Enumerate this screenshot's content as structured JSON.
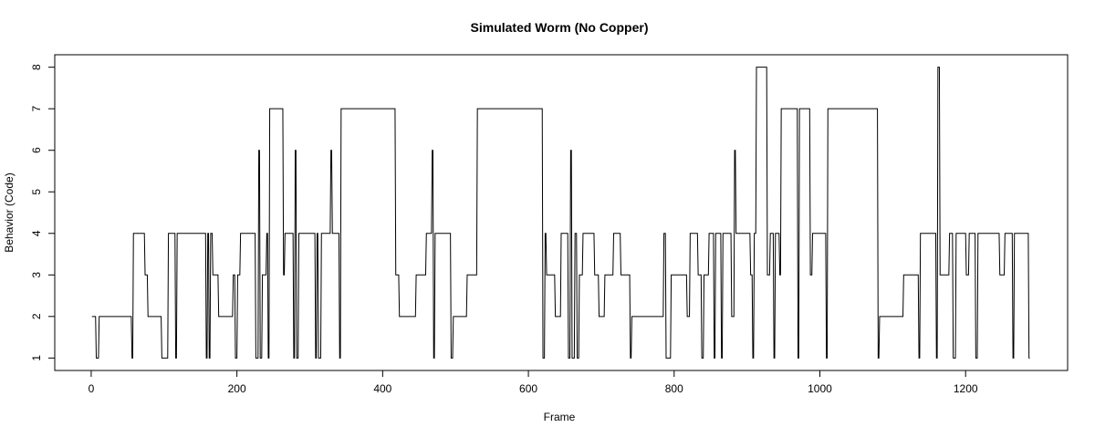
{
  "chart_data": {
    "type": "line",
    "title": "Simulated Worm (No Copper)",
    "xlabel": "Frame",
    "ylabel": "Behavior (Code)",
    "xlim": [
      -50,
      1340
    ],
    "ylim": [
      0.7,
      8.3
    ],
    "x_ticks": [
      0,
      200,
      400,
      600,
      800,
      1000,
      1200
    ],
    "y_ticks": [
      1,
      2,
      3,
      4,
      5,
      6,
      7,
      8
    ],
    "x_tick_labels": [
      "0",
      "200",
      "400",
      "600",
      "800",
      "1000",
      "1200"
    ],
    "y_tick_labels": [
      "1",
      "2",
      "3",
      "4",
      "5",
      "6",
      "7",
      "8"
    ],
    "grid": false,
    "line_color": "#000000",
    "series": [
      {
        "steps": [
          [
            1,
            2
          ],
          [
            7,
            1
          ],
          [
            11,
            2
          ],
          [
            56,
            1
          ],
          [
            58,
            4
          ],
          [
            74,
            3
          ],
          [
            78,
            2
          ],
          [
            97,
            1
          ],
          [
            106,
            4
          ],
          [
            116,
            1
          ],
          [
            118,
            4
          ],
          [
            158,
            1
          ],
          [
            160,
            4
          ],
          [
            162,
            1
          ],
          [
            164,
            4
          ],
          [
            167,
            3
          ],
          [
            175,
            2
          ],
          [
            195,
            3
          ],
          [
            198,
            1
          ],
          [
            201,
            3
          ],
          [
            205,
            4
          ],
          [
            226,
            1
          ],
          [
            230,
            6
          ],
          [
            232,
            1
          ],
          [
            235,
            3
          ],
          [
            241,
            4
          ],
          [
            243,
            1
          ],
          [
            245,
            7
          ],
          [
            264,
            3
          ],
          [
            266,
            4
          ],
          [
            278,
            1
          ],
          [
            280,
            6
          ],
          [
            282,
            1
          ],
          [
            285,
            4
          ],
          [
            308,
            1
          ],
          [
            310,
            4
          ],
          [
            312,
            1
          ],
          [
            316,
            4
          ],
          [
            329,
            6
          ],
          [
            331,
            4
          ],
          [
            341,
            1
          ],
          [
            343,
            7
          ],
          [
            418,
            3
          ],
          [
            423,
            2
          ],
          [
            446,
            3
          ],
          [
            460,
            4
          ],
          [
            468,
            6
          ],
          [
            470,
            1
          ],
          [
            472,
            4
          ],
          [
            494,
            1
          ],
          [
            497,
            2
          ],
          [
            516,
            3
          ],
          [
            530,
            7
          ],
          [
            620,
            1
          ],
          [
            623,
            4
          ],
          [
            625,
            3
          ],
          [
            637,
            2
          ],
          [
            645,
            4
          ],
          [
            655,
            1
          ],
          [
            658,
            6
          ],
          [
            660,
            1
          ],
          [
            664,
            4
          ],
          [
            667,
            1
          ],
          [
            670,
            3
          ],
          [
            675,
            4
          ],
          [
            691,
            3
          ],
          [
            697,
            2
          ],
          [
            705,
            3
          ],
          [
            717,
            4
          ],
          [
            727,
            3
          ],
          [
            740,
            1
          ],
          [
            742,
            2
          ],
          [
            786,
            4
          ],
          [
            789,
            1
          ],
          [
            796,
            3
          ],
          [
            818,
            2
          ],
          [
            822,
            4
          ],
          [
            833,
            3
          ],
          [
            838,
            1
          ],
          [
            841,
            3
          ],
          [
            848,
            4
          ],
          [
            855,
            1
          ],
          [
            857,
            4
          ],
          [
            865,
            1
          ],
          [
            867,
            4
          ],
          [
            879,
            2
          ],
          [
            883,
            6
          ],
          [
            885,
            4
          ],
          [
            905,
            3
          ],
          [
            908,
            1
          ],
          [
            910,
            4
          ],
          [
            913,
            8
          ],
          [
            928,
            3
          ],
          [
            932,
            4
          ],
          [
            937,
            1
          ],
          [
            939,
            4
          ],
          [
            945,
            3
          ],
          [
            947,
            7
          ],
          [
            970,
            1
          ],
          [
            972,
            7
          ],
          [
            987,
            3
          ],
          [
            990,
            4
          ],
          [
            1009,
            1
          ],
          [
            1011,
            7
          ],
          [
            1080,
            1
          ],
          [
            1082,
            2
          ],
          [
            1115,
            3
          ],
          [
            1136,
            1
          ],
          [
            1138,
            4
          ],
          [
            1160,
            1
          ],
          [
            1162,
            8
          ],
          [
            1165,
            3
          ],
          [
            1178,
            4
          ],
          [
            1183,
            1
          ],
          [
            1187,
            4
          ],
          [
            1201,
            3
          ],
          [
            1205,
            4
          ],
          [
            1214,
            1
          ],
          [
            1217,
            4
          ],
          [
            1247,
            3
          ],
          [
            1254,
            4
          ],
          [
            1265,
            1
          ],
          [
            1267,
            4
          ],
          [
            1287,
            1
          ]
        ],
        "x_end": 1288
      }
    ]
  }
}
